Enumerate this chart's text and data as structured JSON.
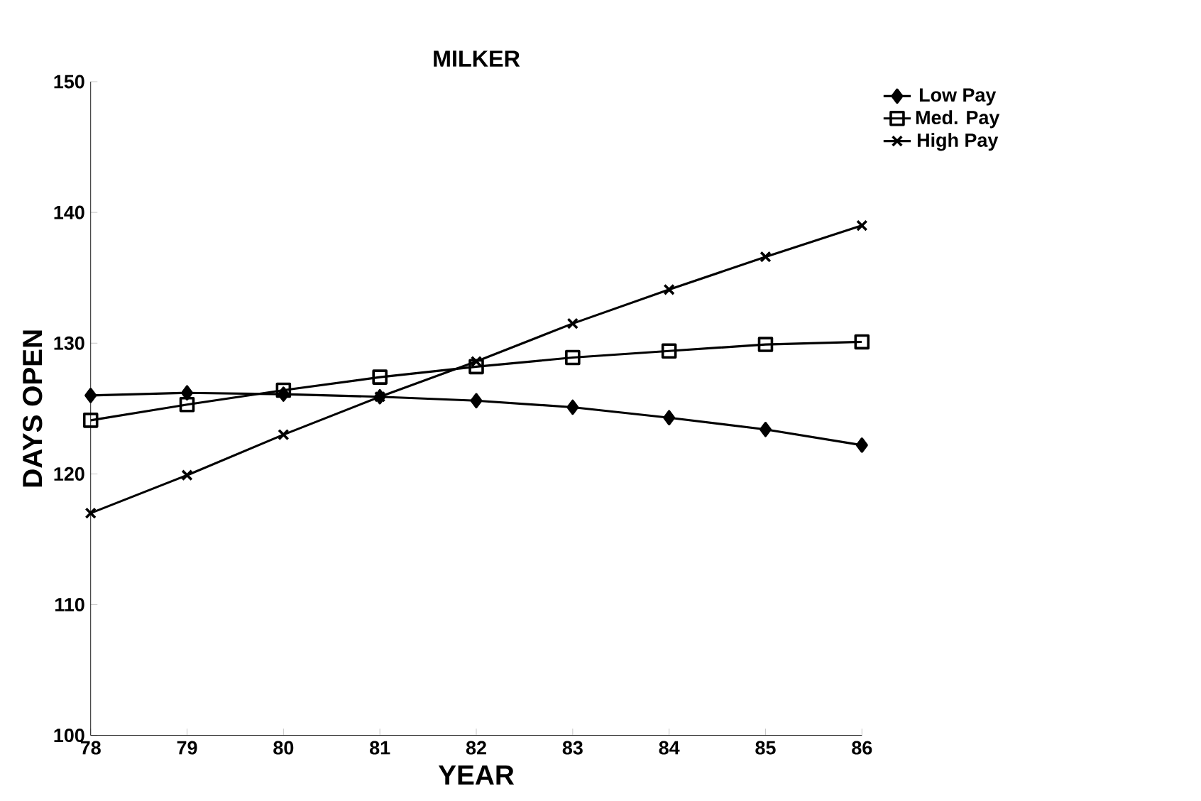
{
  "chart_data": {
    "type": "line",
    "title": "MILKER",
    "xlabel": "YEAR",
    "ylabel": "DAYS OPEN",
    "x": [
      78,
      79,
      80,
      81,
      82,
      83,
      84,
      85,
      86
    ],
    "xlim": [
      78,
      86
    ],
    "xticks": [
      78,
      79,
      80,
      81,
      82,
      83,
      84,
      85,
      86
    ],
    "ylim": [
      100,
      150
    ],
    "yticks": [
      100,
      110,
      120,
      130,
      140,
      150
    ],
    "grid": false,
    "legend": "top right",
    "line_style": "solid",
    "series": [
      {
        "name": "Low Pay",
        "color": "#000000",
        "marker": "diamond",
        "values": [
          126.0,
          126.2,
          126.1,
          125.9,
          125.6,
          125.1,
          124.3,
          123.4,
          122.2
        ]
      },
      {
        "name": "Med. Pay",
        "color": "#000000",
        "marker": "square",
        "values": [
          124.1,
          125.3,
          126.4,
          127.4,
          128.2,
          128.9,
          129.4,
          129.9,
          130.1
        ]
      },
      {
        "name": "High Pay",
        "color": "#000000",
        "marker": "cross",
        "values": [
          117.0,
          119.9,
          123.0,
          125.9,
          128.6,
          131.5,
          134.1,
          136.6,
          139.0
        ]
      }
    ]
  }
}
